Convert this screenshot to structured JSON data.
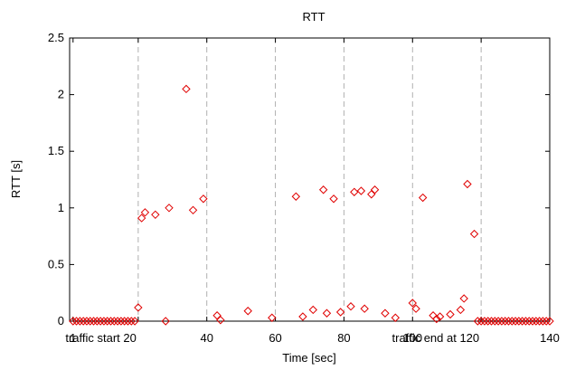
{
  "chart_data": {
    "type": "scatter",
    "title": "RTT",
    "xlabel": "Time [sec]",
    "ylabel": "RTT [s]",
    "xlim": [
      0,
      140
    ],
    "ylim": [
      0,
      2.5
    ],
    "grid": "vertical dashed",
    "x_ticks": [
      {
        "value": 1,
        "label": "1"
      },
      {
        "value": 20,
        "label": "traffic start 20"
      },
      {
        "value": 40,
        "label": "40"
      },
      {
        "value": 60,
        "label": "60"
      },
      {
        "value": 80,
        "label": "80"
      },
      {
        "value": 100,
        "label": "100"
      },
      {
        "value": 120,
        "label": "traffic end at 120"
      },
      {
        "value": 140,
        "label": "140"
      }
    ],
    "y_ticks": [
      {
        "value": 0,
        "label": "0"
      },
      {
        "value": 0.5,
        "label": "0.5"
      },
      {
        "value": 1,
        "label": "1"
      },
      {
        "value": 1.5,
        "label": "1.5"
      },
      {
        "value": 2,
        "label": "2"
      },
      {
        "value": 2.5,
        "label": "2.5"
      }
    ],
    "gridlines_x": [
      20,
      40,
      60,
      80,
      100,
      120
    ],
    "series": [
      {
        "marker": "diamond",
        "color": "#e00000",
        "points": [
          [
            1,
            0
          ],
          [
            2,
            0
          ],
          [
            3,
            0
          ],
          [
            4,
            0
          ],
          [
            5,
            0
          ],
          [
            6,
            0
          ],
          [
            7,
            0
          ],
          [
            8,
            0
          ],
          [
            9,
            0
          ],
          [
            10,
            0
          ],
          [
            11,
            0
          ],
          [
            12,
            0
          ],
          [
            13,
            0
          ],
          [
            14,
            0
          ],
          [
            15,
            0
          ],
          [
            16,
            0
          ],
          [
            17,
            0
          ],
          [
            18,
            0
          ],
          [
            19,
            0
          ],
          [
            20,
            0.12
          ],
          [
            21,
            0.91
          ],
          [
            22,
            0.96
          ],
          [
            25,
            0.94
          ],
          [
            28,
            0
          ],
          [
            29,
            1.0
          ],
          [
            34,
            2.05
          ],
          [
            36,
            0.98
          ],
          [
            39,
            1.08
          ],
          [
            43,
            0.05
          ],
          [
            44,
            0.01
          ],
          [
            52,
            0.09
          ],
          [
            59,
            0.03
          ],
          [
            66,
            1.1
          ],
          [
            68,
            0.04
          ],
          [
            71,
            0.1
          ],
          [
            74,
            1.16
          ],
          [
            75,
            0.07
          ],
          [
            77,
            1.08
          ],
          [
            79,
            0.08
          ],
          [
            82,
            0.13
          ],
          [
            83,
            1.14
          ],
          [
            85,
            1.15
          ],
          [
            86,
            0.11
          ],
          [
            88,
            1.12
          ],
          [
            89,
            1.16
          ],
          [
            92,
            0.07
          ],
          [
            95,
            0.03
          ],
          [
            100,
            0.16
          ],
          [
            101,
            0.11
          ],
          [
            103,
            1.09
          ],
          [
            106,
            0.05
          ],
          [
            107,
            0.02
          ],
          [
            108,
            0.04
          ],
          [
            111,
            0.06
          ],
          [
            114,
            0.1
          ],
          [
            115,
            0.2
          ],
          [
            116,
            1.21
          ],
          [
            118,
            0.77
          ],
          [
            119,
            0
          ],
          [
            120,
            0
          ],
          [
            121,
            0
          ],
          [
            122,
            0
          ],
          [
            123,
            0
          ],
          [
            124,
            0
          ],
          [
            125,
            0
          ],
          [
            126,
            0
          ],
          [
            127,
            0
          ],
          [
            128,
            0
          ],
          [
            129,
            0
          ],
          [
            130,
            0
          ],
          [
            131,
            0
          ],
          [
            132,
            0
          ],
          [
            133,
            0
          ],
          [
            134,
            0
          ],
          [
            135,
            0
          ],
          [
            136,
            0
          ],
          [
            137,
            0
          ],
          [
            138,
            0
          ],
          [
            139,
            0
          ],
          [
            140,
            0
          ]
        ]
      }
    ]
  }
}
